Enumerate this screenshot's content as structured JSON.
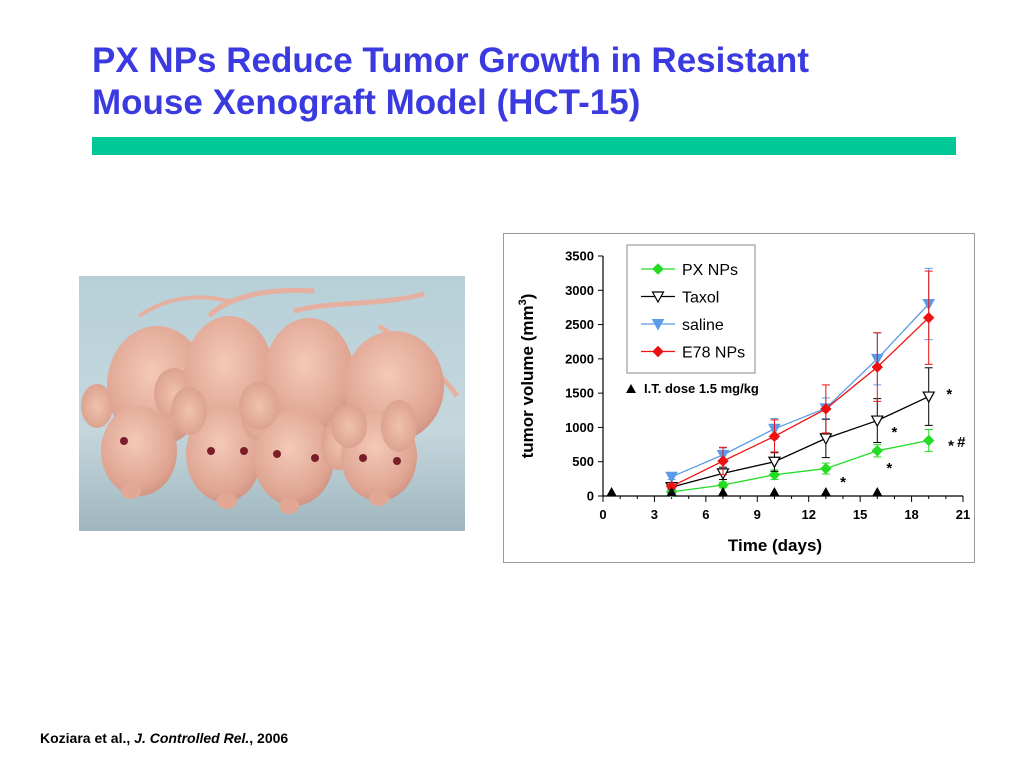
{
  "slide": {
    "title_line1": "PX NPs Reduce Tumor Growth in Resistant",
    "title_line2": "Mouse Xenograft Model (HCT-15)",
    "accent_color": "#00c896",
    "title_color": "#3a3ae0"
  },
  "photo": {
    "subject": "four hairless nude mice"
  },
  "citation": {
    "authors": "Koziara et al.,",
    "journal": "J. Controlled Rel.",
    "year": ", 2006"
  },
  "chart_data": {
    "type": "line",
    "xlabel": "Time (days)",
    "ylabel_main": "tumor volume (mm",
    "ylabel_sup": "3",
    "ylabel_close": ")",
    "xlim": [
      0,
      21
    ],
    "ylim": [
      0,
      3500
    ],
    "xticks": [
      "0",
      "3",
      "6",
      "9",
      "12",
      "15",
      "18",
      "21"
    ],
    "yticks": [
      "0",
      "500",
      "1000",
      "1500",
      "2000",
      "2500",
      "3000",
      "3500"
    ],
    "legend_position": "top-center",
    "dose_label": "I.T. dose 1.5 mg/kg",
    "dose_days": [
      0.5,
      4,
      7,
      10,
      13,
      16
    ],
    "series": [
      {
        "name": "PX NPs",
        "color": "#22dd22",
        "marker": "diamond-filled",
        "x": [
          4,
          7,
          10,
          13,
          16,
          19
        ],
        "y": [
          60,
          160,
          310,
          400,
          660,
          810
        ],
        "err": [
          20,
          40,
          70,
          80,
          90,
          160
        ]
      },
      {
        "name": "Taxol",
        "color": "#000000",
        "marker": "triangle-down-open",
        "x": [
          4,
          7,
          10,
          13,
          16,
          19
        ],
        "y": [
          130,
          330,
          500,
          840,
          1100,
          1450
        ],
        "err": [
          30,
          90,
          140,
          280,
          320,
          420
        ]
      },
      {
        "name": "saline",
        "color": "#5b9be8",
        "marker": "triangle-down-filled",
        "x": [
          4,
          7,
          10,
          13,
          16,
          19
        ],
        "y": [
          280,
          600,
          980,
          1280,
          2000,
          2800
        ],
        "err": [
          40,
          100,
          150,
          150,
          380,
          520
        ]
      },
      {
        "name": "E78 NPs",
        "color": "#ee1111",
        "marker": "diamond-filled",
        "x": [
          4,
          7,
          10,
          13,
          16,
          19
        ],
        "y": [
          140,
          510,
          870,
          1270,
          1880,
          2600
        ],
        "err": [
          30,
          200,
          240,
          350,
          500,
          680
        ]
      }
    ],
    "annotations": [
      {
        "text": "*",
        "x": 20.2,
        "y": 1500
      },
      {
        "text": "*",
        "x": 17,
        "y": 950
      },
      {
        "text": "*",
        "x": 20.3,
        "y": 750
      },
      {
        "text": "#",
        "x": 20.9,
        "y": 800
      },
      {
        "text": "*",
        "x": 16.7,
        "y": 420
      },
      {
        "text": "*",
        "x": 14,
        "y": 220
      }
    ]
  }
}
